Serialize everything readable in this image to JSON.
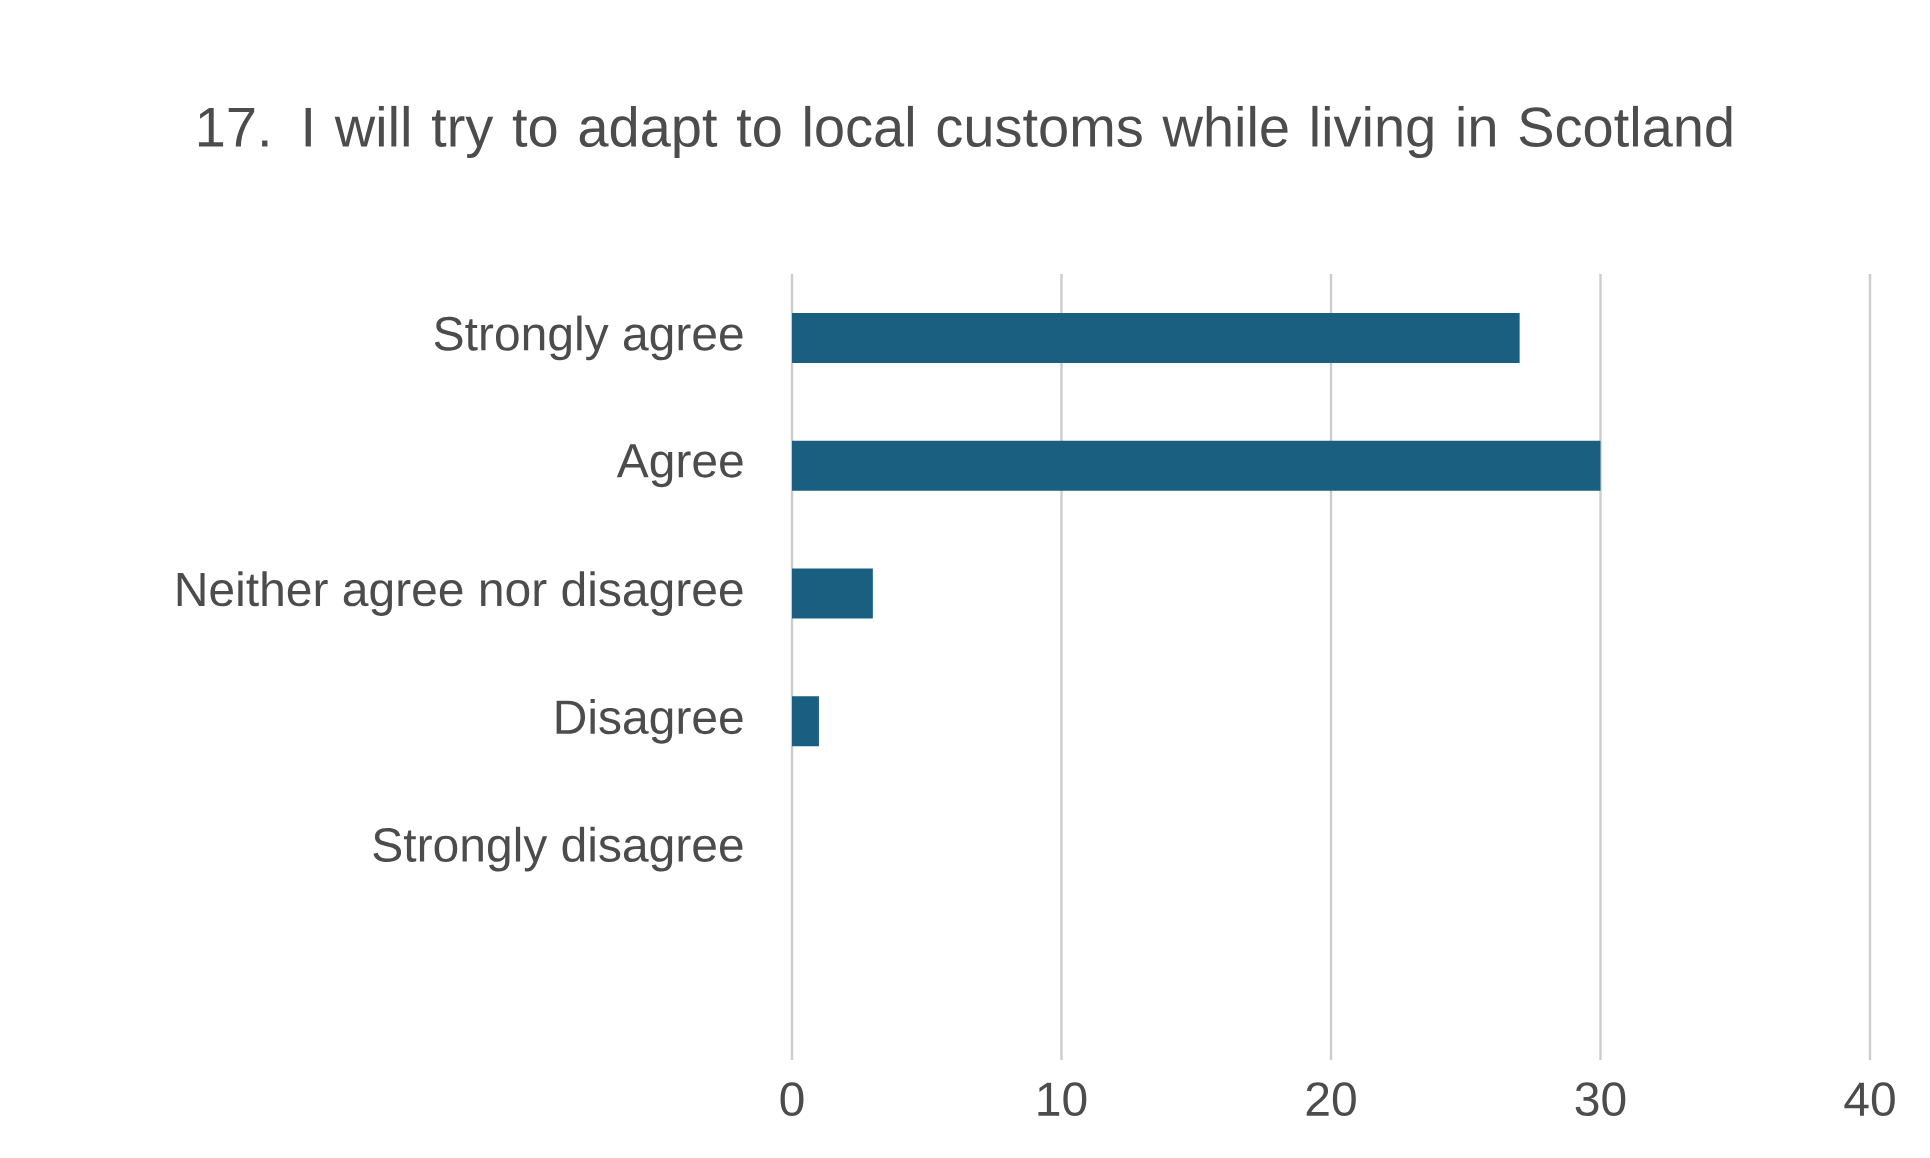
{
  "chart_data": {
    "type": "bar",
    "orientation": "horizontal",
    "title": "17. I will try to adapt to local customs while living in Scotland",
    "categories": [
      "Strongly agree",
      "Agree",
      "Neither agree nor disagree",
      "Disagree",
      "Strongly disagree"
    ],
    "values": [
      27,
      30,
      3,
      1,
      0
    ],
    "color": "#1a5f80",
    "xlim": [
      0,
      40
    ],
    "xticks": [
      0,
      10,
      20,
      30,
      40
    ],
    "grid": "x"
  }
}
